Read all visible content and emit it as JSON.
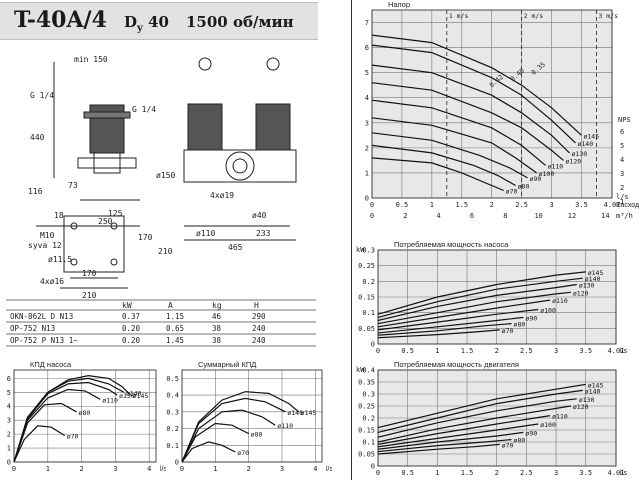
{
  "header": {
    "model": "T-40A/4",
    "dy_letter": "D",
    "dy_sub": "y",
    "dy_value": "40",
    "rpm": "1500 об/мин"
  },
  "drawing": {
    "dims": [
      "min 150",
      "440",
      "G 1/4",
      "G 1/4",
      "116",
      "73",
      "18",
      "125",
      "250",
      "M10",
      "syva 12",
      "ø150",
      "4xø19",
      "ø40",
      "ø110",
      "233",
      "465",
      "ø11.5",
      "170",
      "210",
      "4xø16",
      "170",
      "210"
    ]
  },
  "motor_table": {
    "headers": [
      "",
      "kW",
      "A",
      "kg",
      "H"
    ],
    "rows": [
      [
        "OKN-862L D N13",
        "0.37",
        "1.15",
        "46",
        "290"
      ],
      [
        "OP-752 N13",
        "0.20",
        "0.65",
        "38",
        "240"
      ],
      [
        "OP-752 P N13 1~",
        "0.20",
        "1.45",
        "38",
        "240"
      ]
    ]
  },
  "chart_data": [
    {
      "id": "pump-efficiency",
      "type": "line",
      "title": "КПД насоса",
      "xlabel": "l/s",
      "ylabel": "",
      "x_ticks": [
        0,
        1,
        2,
        3,
        4
      ],
      "y_ticks": [
        0,
        1,
        2,
        3,
        4,
        5,
        6
      ],
      "xlim": [
        0,
        4.2
      ],
      "ylim": [
        0,
        6.6
      ],
      "series": [
        {
          "name": "ø145",
          "x": [
            0,
            0.4,
            1.0,
            1.6,
            2.2,
            2.8,
            3.2,
            3.45
          ],
          "y": [
            0,
            3.2,
            5.0,
            5.9,
            6.2,
            6.0,
            5.4,
            4.8
          ]
        },
        {
          "name": "ø140",
          "x": [
            0,
            0.4,
            1.0,
            1.6,
            2.2,
            2.8,
            3.25
          ],
          "y": [
            0,
            3.2,
            5.0,
            5.8,
            6.0,
            5.6,
            5.0
          ]
        },
        {
          "name": "ø130",
          "x": [
            0,
            0.4,
            1.0,
            1.6,
            2.2,
            2.8,
            3.05
          ],
          "y": [
            0,
            3.1,
            4.9,
            5.6,
            5.7,
            5.2,
            4.8
          ]
        },
        {
          "name": "ø110",
          "x": [
            0,
            0.4,
            1.0,
            1.6,
            2.1,
            2.55
          ],
          "y": [
            0,
            3.0,
            4.6,
            5.2,
            5.1,
            4.5
          ]
        },
        {
          "name": "ø80",
          "x": [
            0,
            0.4,
            0.9,
            1.4,
            1.85
          ],
          "y": [
            0,
            2.8,
            4.1,
            4.2,
            3.6
          ]
        },
        {
          "name": "ø70",
          "x": [
            0,
            0.3,
            0.7,
            1.1,
            1.5
          ],
          "y": [
            0,
            1.6,
            2.6,
            2.5,
            1.9
          ]
        }
      ]
    },
    {
      "id": "total-efficiency",
      "type": "line",
      "title": "Суммарный КПД",
      "xlabel": "l/s",
      "ylabel": "",
      "x_ticks": [
        0,
        1,
        2,
        3,
        4
      ],
      "y_ticks": [
        0,
        0.1,
        0.2,
        0.3,
        0.4,
        0.5
      ],
      "xlim": [
        0,
        4.2
      ],
      "ylim": [
        0,
        0.55
      ],
      "series": [
        {
          "name": "ø145",
          "x": [
            0,
            0.5,
            1.2,
            1.9,
            2.6,
            3.2,
            3.5
          ],
          "y": [
            0,
            0.24,
            0.37,
            0.42,
            0.41,
            0.35,
            0.3
          ]
        },
        {
          "name": "ø140",
          "x": [
            0,
            0.5,
            1.2,
            1.9,
            2.5,
            3.1
          ],
          "y": [
            0,
            0.23,
            0.35,
            0.38,
            0.36,
            0.3
          ]
        },
        {
          "name": "ø110",
          "x": [
            0,
            0.5,
            1.2,
            1.8,
            2.4,
            2.8
          ],
          "y": [
            0,
            0.2,
            0.3,
            0.31,
            0.27,
            0.22
          ]
        },
        {
          "name": "ø80",
          "x": [
            0,
            0.4,
            1.0,
            1.5,
            2.0
          ],
          "y": [
            0,
            0.15,
            0.23,
            0.22,
            0.17
          ]
        },
        {
          "name": "ø70",
          "x": [
            0,
            0.3,
            0.8,
            1.2,
            1.6
          ],
          "y": [
            0,
            0.08,
            0.12,
            0.1,
            0.06
          ]
        }
      ]
    },
    {
      "id": "head-curve",
      "type": "line",
      "title": "Напор",
      "xlabel": "Расход",
      "ylabel": "",
      "x_ticks": [
        0,
        0.5,
        1,
        1.5,
        2,
        2.5,
        3,
        3.5,
        4.01
      ],
      "x2_ticks": [
        0,
        2,
        4,
        6,
        8,
        10,
        12,
        14
      ],
      "y_ticks": [
        0,
        1,
        2,
        3,
        4,
        5,
        6,
        7
      ],
      "xlim": [
        0,
        4.01
      ],
      "ylim": [
        0,
        7.5
      ],
      "unit_right": "l/s",
      "unit_right2": "m³/h",
      "velocity_labels": [
        "1 m/s",
        "2 m/s",
        "3 m/s"
      ],
      "velocity_positions": [
        1.25,
        2.5,
        3.75
      ],
      "efficiency_labels": [
        "0.42",
        "0.40",
        "0.35"
      ],
      "npsh_label": "NPS",
      "npsh_ticks": [
        "6",
        "5",
        "4",
        "3",
        "2",
        "1"
      ],
      "series": [
        {
          "name": "ø145",
          "x": [
            0,
            1,
            2,
            2.5,
            3,
            3.5
          ],
          "y": [
            6.5,
            6.2,
            5.2,
            4.5,
            3.6,
            2.5
          ]
        },
        {
          "name": "ø140",
          "x": [
            0,
            1,
            2,
            2.5,
            3,
            3.4
          ],
          "y": [
            6.1,
            5.8,
            4.8,
            4.1,
            3.1,
            2.2
          ]
        },
        {
          "name": "ø130",
          "x": [
            0,
            1,
            2,
            2.5,
            3,
            3.3
          ],
          "y": [
            5.3,
            5.0,
            4.1,
            3.4,
            2.5,
            1.8
          ]
        },
        {
          "name": "ø120",
          "x": [
            0,
            1,
            2,
            2.5,
            3,
            3.2
          ],
          "y": [
            4.6,
            4.3,
            3.4,
            2.8,
            1.9,
            1.5
          ]
        },
        {
          "name": "ø110",
          "x": [
            0,
            1,
            2,
            2.5,
            2.9
          ],
          "y": [
            3.9,
            3.6,
            2.8,
            2.1,
            1.3
          ]
        },
        {
          "name": "ø100",
          "x": [
            0,
            1,
            2,
            2.4,
            2.75
          ],
          "y": [
            3.2,
            2.9,
            2.2,
            1.6,
            1.0
          ]
        },
        {
          "name": "ø90",
          "x": [
            0,
            1,
            1.8,
            2.3,
            2.6
          ],
          "y": [
            2.6,
            2.3,
            1.7,
            1.2,
            0.8
          ]
        },
        {
          "name": "ø80",
          "x": [
            0,
            1,
            1.7,
            2.1,
            2.4
          ],
          "y": [
            2.1,
            1.8,
            1.3,
            0.9,
            0.5
          ]
        },
        {
          "name": "ø70",
          "x": [
            0,
            1,
            1.5,
            1.9,
            2.2
          ],
          "y": [
            1.6,
            1.4,
            1.0,
            0.6,
            0.3
          ]
        }
      ]
    },
    {
      "id": "pump-power",
      "type": "line",
      "title": "Потребляемая мощность насоса",
      "xlabel": "l/s",
      "ylabel": "kW",
      "x_ticks": [
        0,
        0.5,
        1,
        1.5,
        2,
        2.5,
        3,
        3.5,
        4.01
      ],
      "y_ticks": [
        0,
        0.05,
        0.1,
        0.15,
        0.2,
        0.25,
        0.3
      ],
      "xlim": [
        0,
        4.01
      ],
      "ylim": [
        0,
        0.3
      ],
      "series": [
        {
          "name": "ø145",
          "x": [
            0,
            1,
            2,
            3,
            3.5
          ],
          "y": [
            0.095,
            0.15,
            0.19,
            0.22,
            0.23
          ]
        },
        {
          "name": "ø140",
          "x": [
            0,
            1,
            2,
            3,
            3.45
          ],
          "y": [
            0.085,
            0.135,
            0.175,
            0.2,
            0.21
          ]
        },
        {
          "name": "ø130",
          "x": [
            0,
            1,
            2,
            3,
            3.35
          ],
          "y": [
            0.075,
            0.12,
            0.155,
            0.18,
            0.19
          ]
        },
        {
          "name": "ø120",
          "x": [
            0,
            1,
            2,
            3,
            3.25
          ],
          "y": [
            0.065,
            0.1,
            0.135,
            0.16,
            0.165
          ]
        },
        {
          "name": "ø110",
          "x": [
            0,
            1,
            2,
            2.9
          ],
          "y": [
            0.055,
            0.085,
            0.115,
            0.14
          ]
        },
        {
          "name": "ø100",
          "x": [
            0,
            1,
            2,
            2.7
          ],
          "y": [
            0.045,
            0.07,
            0.095,
            0.11
          ]
        },
        {
          "name": "ø90",
          "x": [
            0,
            1,
            2,
            2.45
          ],
          "y": [
            0.035,
            0.055,
            0.075,
            0.085
          ]
        },
        {
          "name": "ø80",
          "x": [
            0,
            1,
            1.8,
            2.25
          ],
          "y": [
            0.028,
            0.042,
            0.058,
            0.065
          ]
        },
        {
          "name": "ø70",
          "x": [
            0,
            1,
            1.6,
            2.05
          ],
          "y": [
            0.02,
            0.03,
            0.038,
            0.045
          ]
        }
      ]
    },
    {
      "id": "motor-power",
      "type": "line",
      "title": "Потребляемая мощность двигателя",
      "xlabel": "l/s",
      "ylabel": "kW",
      "x_ticks": [
        0,
        0.5,
        1,
        1.5,
        2,
        2.5,
        3,
        3.5,
        4.01
      ],
      "y_ticks": [
        0,
        0.05,
        0.1,
        0.15,
        0.2,
        0.25,
        0.3,
        0.35,
        0.4
      ],
      "xlim": [
        0,
        4.01
      ],
      "ylim": [
        0,
        0.4
      ],
      "series": [
        {
          "name": "ø145",
          "x": [
            0,
            1,
            2,
            3,
            3.5
          ],
          "y": [
            0.16,
            0.22,
            0.28,
            0.32,
            0.34
          ]
        },
        {
          "name": "ø140",
          "x": [
            0,
            1,
            2,
            3,
            3.45
          ],
          "y": [
            0.14,
            0.2,
            0.26,
            0.3,
            0.315
          ]
        },
        {
          "name": "ø130",
          "x": [
            0,
            1,
            2,
            3,
            3.35
          ],
          "y": [
            0.12,
            0.18,
            0.23,
            0.27,
            0.28
          ]
        },
        {
          "name": "ø120",
          "x": [
            0,
            1,
            2,
            3,
            3.25
          ],
          "y": [
            0.1,
            0.155,
            0.2,
            0.24,
            0.25
          ]
        },
        {
          "name": "ø110",
          "x": [
            0,
            1,
            2,
            2.9
          ],
          "y": [
            0.09,
            0.135,
            0.175,
            0.21
          ]
        },
        {
          "name": "ø100",
          "x": [
            0,
            1,
            2,
            2.7
          ],
          "y": [
            0.08,
            0.115,
            0.15,
            0.175
          ]
        },
        {
          "name": "ø90",
          "x": [
            0,
            1,
            2,
            2.45
          ],
          "y": [
            0.07,
            0.1,
            0.125,
            0.14
          ]
        },
        {
          "name": "ø80",
          "x": [
            0,
            1,
            1.8,
            2.25
          ],
          "y": [
            0.06,
            0.085,
            0.1,
            0.11
          ]
        },
        {
          "name": "ø70",
          "x": [
            0,
            1,
            1.6,
            2.05
          ],
          "y": [
            0.05,
            0.07,
            0.08,
            0.09
          ]
        }
      ]
    }
  ]
}
